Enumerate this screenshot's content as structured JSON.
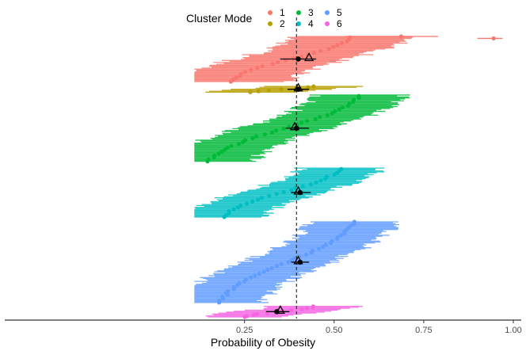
{
  "chart_data": {
    "type": "scatter",
    "title": "",
    "xlabel": "Probability of Obesity",
    "ylabel": "",
    "xlim": [
      0.0,
      1.0
    ],
    "xticks": [
      0.25,
      0.5,
      0.75,
      1.0
    ],
    "xtick_labels": [
      "0.25",
      "0.50",
      "0.75",
      "1.00"
    ],
    "reference_line": 0.395,
    "legend": {
      "title": "Cluster Mode",
      "placement": "top",
      "entries": [
        {
          "label": "1",
          "color": "#F8766D"
        },
        {
          "label": "2",
          "color": "#B79F00"
        },
        {
          "label": "3",
          "color": "#00BA38"
        },
        {
          "label": "4",
          "color": "#00BFC4"
        },
        {
          "label": "5",
          "color": "#619CFF"
        },
        {
          "label": "6",
          "color": "#F564E3"
        }
      ]
    },
    "series": [
      {
        "name": "1",
        "color": "#F8766D",
        "n": 48,
        "band": [
          0,
          47
        ],
        "estimates": [
          0.21,
          0.55
        ],
        "ci_halfwidth": 0.155,
        "outliers": [
          {
            "estimate": 0.687,
            "low": 0.53,
            "high": 0.79
          },
          {
            "estimate": 0.945,
            "low": 0.9,
            "high": 0.97
          }
        ],
        "summary_point": 0.4,
        "summary_ci": [
          0.35,
          0.45
        ],
        "summary_triangle": 0.43
      },
      {
        "name": "2",
        "color": "#B79F00",
        "n": 7,
        "band": [
          52,
          58
        ],
        "estimates": [
          0.27,
          0.445
        ],
        "ci_halfwidth": 0.12,
        "outliers": [],
        "summary_point": 0.4,
        "summary_ci": [
          0.37,
          0.43
        ],
        "summary_triangle": 0.4
      },
      {
        "name": "3",
        "color": "#00BA38",
        "n": 70,
        "band": [
          61,
          130
        ],
        "estimates": [
          0.15,
          0.575
        ],
        "ci_halfwidth": 0.12,
        "outliers": [],
        "summary_point": 0.395,
        "summary_ci": [
          0.365,
          0.43
        ],
        "summary_triangle": 0.39
      },
      {
        "name": "4",
        "color": "#00BFC4",
        "n": 52,
        "band": [
          137,
          188
        ],
        "estimates": [
          0.19,
          0.52
        ],
        "ci_halfwidth": 0.11,
        "outliers": [],
        "summary_point": 0.405,
        "summary_ci": [
          0.38,
          0.435
        ],
        "summary_triangle": 0.4
      },
      {
        "name": "5",
        "color": "#619CFF",
        "n": 85,
        "band": [
          193,
          277
        ],
        "estimates": [
          0.18,
          0.555
        ],
        "ci_halfwidth": 0.12,
        "outliers": [],
        "summary_point": 0.405,
        "summary_ci": [
          0.38,
          0.43
        ],
        "summary_triangle": 0.4
      },
      {
        "name": "6",
        "color": "#F564E3",
        "n": 12,
        "band": [
          281,
          292
        ],
        "estimates": [
          0.25,
          0.445
        ],
        "ci_halfwidth": 0.12,
        "outliers": [],
        "summary_point": 0.34,
        "summary_ci": [
          0.31,
          0.375
        ],
        "summary_triangle": 0.35
      }
    ]
  }
}
